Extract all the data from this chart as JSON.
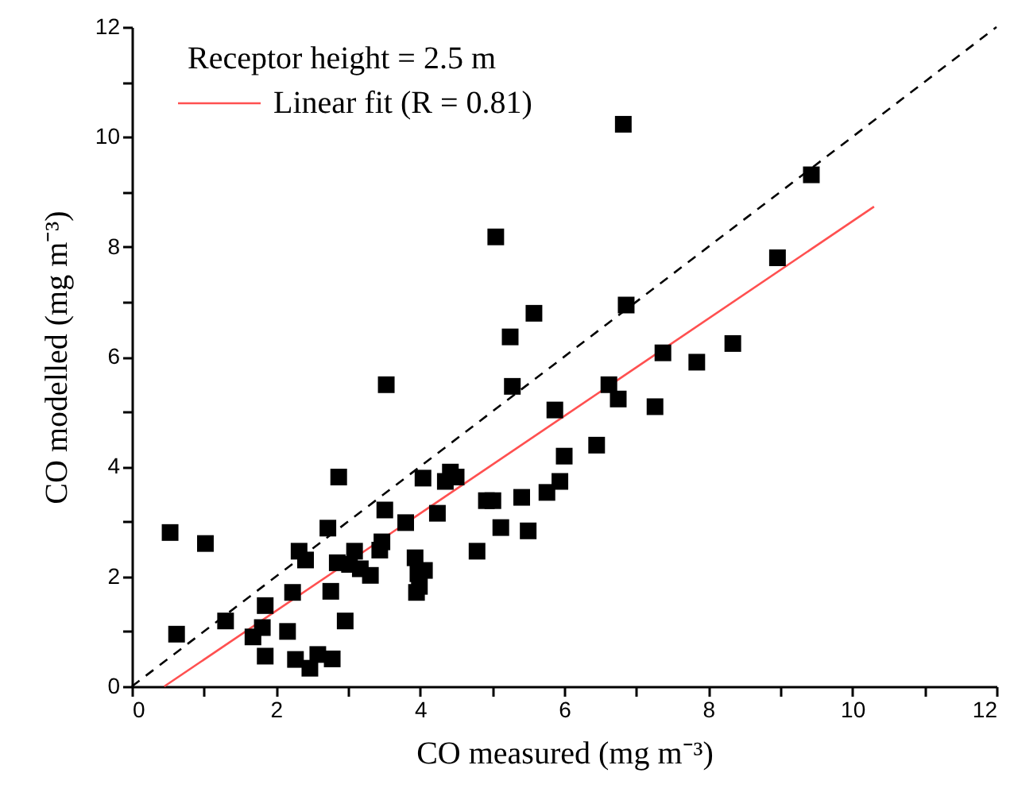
{
  "chart_data": {
    "type": "scatter",
    "xlabel": "CO measured (mg m⁻³)",
    "ylabel": "CO modelled (mg m⁻³)",
    "legend_title": "Receptor height = 2.5 m",
    "legend": "top left",
    "grid": false,
    "xlim": [
      0,
      12
    ],
    "ylim": [
      0,
      12
    ],
    "xticks": [
      0,
      {
        "value": 1,
        "label": null
      },
      2,
      {
        "value": 3,
        "label": null
      },
      4,
      {
        "value": 5,
        "label": null
      },
      6,
      {
        "value": 7,
        "label": null
      },
      8,
      {
        "value": 9,
        "label": null
      },
      10,
      {
        "value": 11,
        "label": null
      },
      12
    ],
    "yticks": [
      0,
      {
        "value": 1,
        "label": null
      },
      2,
      {
        "value": 3,
        "label": null
      },
      4,
      {
        "value": 5,
        "label": null
      },
      6,
      {
        "value": 7,
        "label": null
      },
      8,
      {
        "value": 9,
        "label": null
      },
      10,
      {
        "value": 11,
        "label": null
      },
      12
    ],
    "series": [
      {
        "type": "line",
        "color": "#000000",
        "line_style": "dashed",
        "x": [
          0,
          12
        ],
        "values": [
          0,
          12
        ]
      },
      {
        "type": "line",
        "name": "Linear fit (R = 0.81)",
        "color": "#ff5050",
        "line_style": "solid",
        "x": [
          0.45,
          10.3
        ],
        "values": [
          0,
          8.73
        ]
      },
      {
        "color": "#000000",
        "marker": "square",
        "x": [
          0.53,
          0.62,
          1.02,
          1.3,
          1.68,
          1.81,
          1.85,
          1.85,
          2.16,
          2.23,
          2.27,
          2.32,
          2.41,
          2.47,
          2.58,
          2.78,
          2.76,
          2.72,
          2.87,
          2.96,
          2.85,
          3.09,
          3.02,
          3.17,
          3.31,
          3.44,
          3.47,
          3.51,
          3.53,
          3.8,
          3.93,
          3.97,
          4.06,
          3.99,
          3.95,
          4.04,
          4.35,
          4.42,
          4.5,
          4.24,
          4.79,
          4.92,
          5.01,
          5.12,
          5.41,
          5.5,
          5.25,
          5.28,
          5.58,
          5.76,
          5.94,
          6.0,
          5.87,
          6.45,
          6.82,
          5.05,
          6.86,
          7.37,
          7.84,
          8.34,
          6.62,
          6.75,
          7.26,
          9.43,
          8.96
        ],
        "values": [
          2.8,
          0.95,
          2.6,
          1.19,
          0.9,
          1.07,
          1.47,
          0.55,
          1.0,
          1.71,
          0.49,
          2.46,
          2.3,
          0.33,
          0.58,
          0.5,
          1.73,
          2.88,
          3.81,
          1.19,
          2.25,
          2.46,
          2.22,
          2.14,
          2.02,
          2.48,
          2.63,
          3.21,
          5.49,
          2.98,
          2.34,
          2.05,
          2.11,
          1.82,
          1.71,
          3.79,
          3.73,
          3.9,
          3.81,
          3.15,
          2.46,
          3.38,
          3.38,
          2.89,
          3.44,
          2.83,
          6.36,
          5.46,
          6.79,
          3.53,
          3.73,
          4.19,
          5.03,
          4.39,
          10.23,
          8.18,
          6.94,
          6.07,
          5.9,
          6.24,
          5.49,
          5.23,
          5.09,
          9.31,
          7.8
        ]
      }
    ]
  }
}
